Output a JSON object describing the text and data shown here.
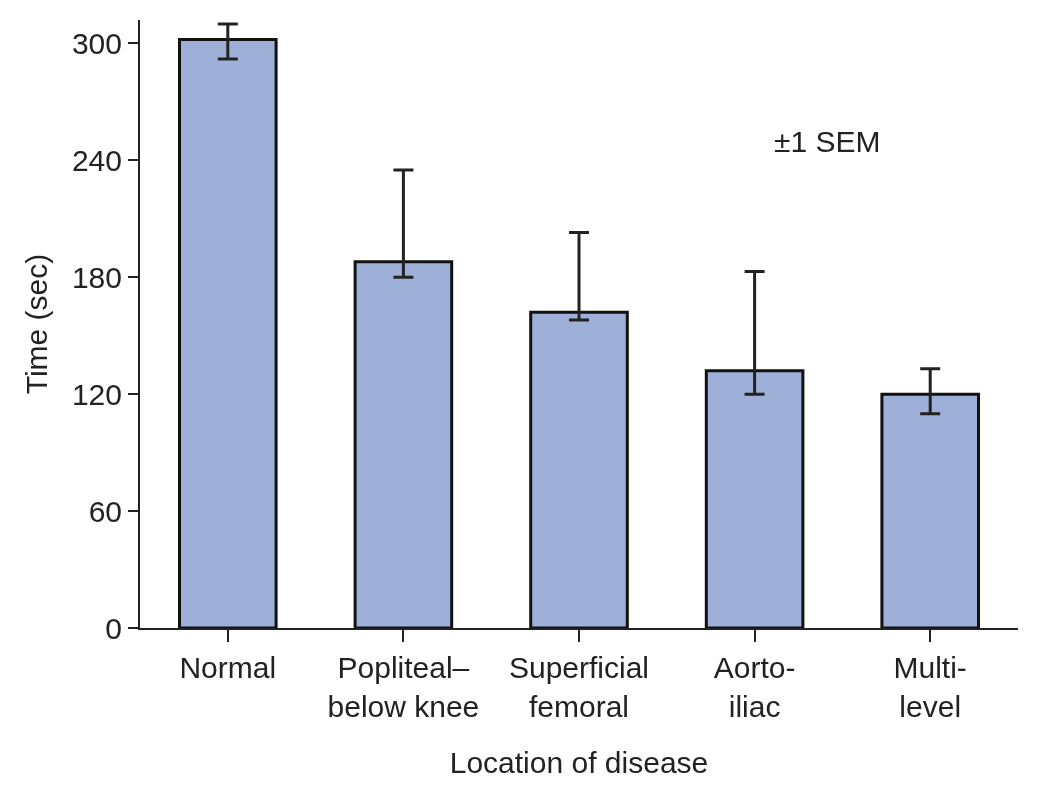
{
  "chart_data": {
    "type": "bar",
    "xlabel": "Location of disease",
    "ylabel": "Time (sec)",
    "categories": [
      "Normal",
      "Popliteal–\nbelow knee",
      "Superficial\nfemoral",
      "Aorto-\niliac",
      "Multi-\nlevel"
    ],
    "values": [
      302,
      188,
      162,
      132,
      120
    ],
    "errors": [
      [
        292,
        310
      ],
      [
        180,
        235
      ],
      [
        158,
        203
      ],
      [
        120,
        183
      ],
      [
        110,
        133
      ]
    ],
    "color": "#9fb0d8",
    "ylim": [
      0,
      312
    ],
    "yticks": [
      0,
      60,
      120,
      180,
      240,
      300
    ],
    "annotations": [
      "±1 SEM"
    ]
  }
}
